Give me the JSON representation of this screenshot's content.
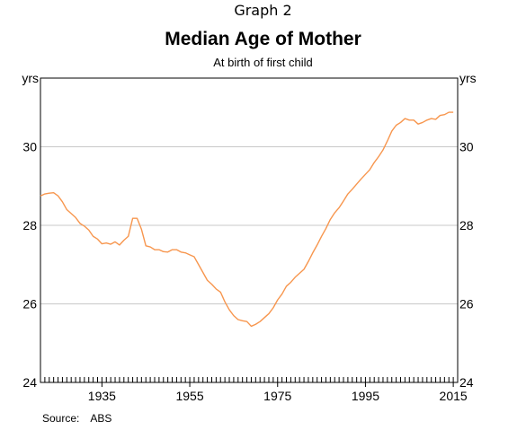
{
  "header": {
    "graph_label": "Graph 2",
    "title": "Median Age of Mother",
    "subtitle": "At birth of first child"
  },
  "footer": {
    "source_label": "Source:",
    "source_value": "ABS"
  },
  "chart_data": {
    "type": "line",
    "title": "Median Age of Mother",
    "subtitle": "At birth of first child",
    "xlabel": "",
    "ylabel": "yrs",
    "ylabel_right": "yrs",
    "xlim": [
      1921,
      2016
    ],
    "ylim": [
      24,
      31.75
    ],
    "x_ticks": [
      1935,
      1955,
      1975,
      1995,
      2015
    ],
    "y_ticks": [
      24,
      26,
      28,
      30
    ],
    "grid": "horizontal",
    "line_color": "#f7964e",
    "series": [
      {
        "x": [
          1921,
          1922,
          1923,
          1924,
          1925,
          1926,
          1927,
          1928,
          1929,
          1930,
          1931,
          1932,
          1933,
          1934,
          1935,
          1936,
          1937,
          1938,
          1939,
          1940,
          1941,
          1942,
          1943,
          1944,
          1945,
          1946,
          1947,
          1948,
          1949,
          1950,
          1951,
          1952,
          1953,
          1954,
          1955,
          1956,
          1957,
          1958,
          1959,
          1960,
          1961,
          1962,
          1963,
          1964,
          1965,
          1966,
          1967,
          1968,
          1969,
          1970,
          1971,
          1972,
          1973,
          1974,
          1975,
          1976,
          1977,
          1978,
          1979,
          1980,
          1981,
          1982,
          1983,
          1984,
          1985,
          1986,
          1987,
          1988,
          1989,
          1990,
          1991,
          1992,
          1993,
          1994,
          1995,
          1996,
          1997,
          1998,
          1999,
          2000,
          2001,
          2002,
          2003,
          2004,
          2005,
          2006,
          2007,
          2008,
          2009,
          2010,
          2011,
          2012,
          2013,
          2014,
          2015
        ],
        "values": [
          28.75,
          28.8,
          28.82,
          28.83,
          28.75,
          28.6,
          28.4,
          28.3,
          28.2,
          28.05,
          27.98,
          27.88,
          27.72,
          27.65,
          27.53,
          27.55,
          27.52,
          27.58,
          27.5,
          27.62,
          27.72,
          28.18,
          28.18,
          27.9,
          27.48,
          27.45,
          27.38,
          27.38,
          27.33,
          27.32,
          27.38,
          27.38,
          27.32,
          27.3,
          27.25,
          27.2,
          27.0,
          26.8,
          26.6,
          26.5,
          26.38,
          26.3,
          26.05,
          25.85,
          25.7,
          25.6,
          25.57,
          25.55,
          25.43,
          25.48,
          25.55,
          25.65,
          25.75,
          25.9,
          26.1,
          26.25,
          26.45,
          26.55,
          26.68,
          26.78,
          26.88,
          27.08,
          27.3,
          27.5,
          27.72,
          27.92,
          28.15,
          28.32,
          28.45,
          28.62,
          28.8,
          28.92,
          29.05,
          29.18,
          29.3,
          29.42,
          29.6,
          29.75,
          29.92,
          30.15,
          30.4,
          30.55,
          30.62,
          30.72,
          30.68,
          30.68,
          30.58,
          30.62,
          30.68,
          30.72,
          30.7,
          30.8,
          30.82,
          30.88,
          30.88
        ]
      }
    ]
  }
}
